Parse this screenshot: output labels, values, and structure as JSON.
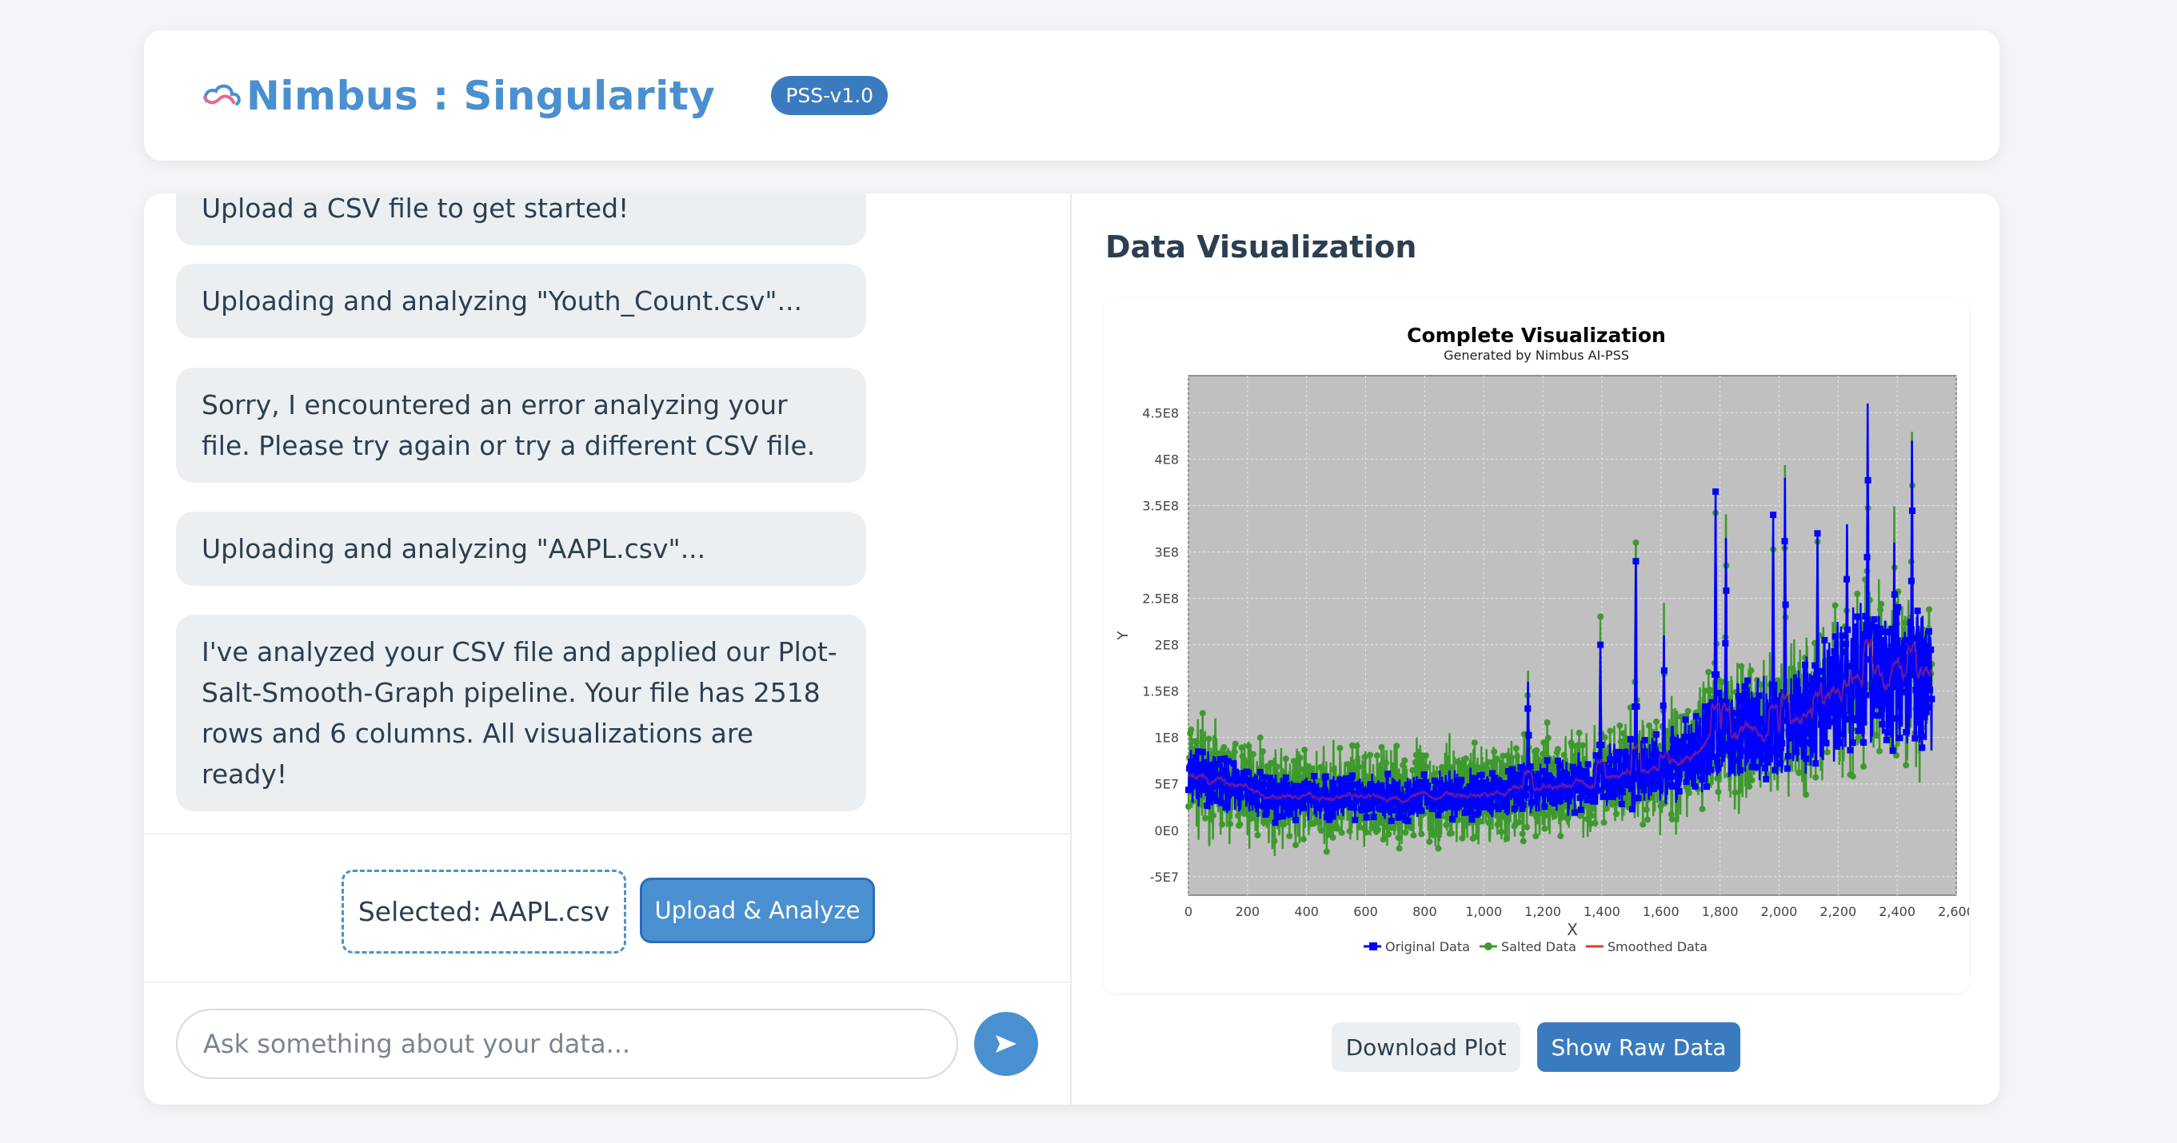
{
  "header": {
    "app_name": "Nimbus : Singularity",
    "version_badge": "PSS-v1.0",
    "brand_color": "#4a90d0"
  },
  "chat": {
    "messages": [
      {
        "text": "Upload a CSV file to get started!"
      },
      {
        "text": "Uploading and analyzing \"Youth_Count.csv\"..."
      },
      {
        "text": "Sorry, I encountered an error analyzing your file. Please try again or try a different CSV file."
      },
      {
        "text": "Uploading and analyzing \"AAPL.csv\"..."
      },
      {
        "text": "I've analyzed your CSV file and applied our Plot-Salt-Smooth-Graph pipeline. Your file has 2518 rows and 6 columns. All visualizations are ready!"
      }
    ],
    "selected_file": "Selected: AAPL.csv",
    "upload_button": "Upload & Analyze",
    "input_placeholder": "Ask something about your data...",
    "send_icon": "send-arrow-icon"
  },
  "visualization": {
    "panel_title": "Data Visualization",
    "download_button": "Download Plot",
    "raw_data_button": "Show Raw Data"
  },
  "chart_data": {
    "type": "line",
    "title": "Complete Visualization",
    "subtitle": "Generated by Nimbus AI-PSS",
    "xlabel": "X",
    "ylabel": "Y",
    "xlim": [
      0,
      2600
    ],
    "ylim": [
      -70000000,
      490000000
    ],
    "x_ticks": [
      0,
      200,
      400,
      600,
      800,
      1000,
      1200,
      1400,
      1600,
      1800,
      2000,
      2200,
      2400,
      2600
    ],
    "x_tick_labels": [
      "0",
      "200",
      "400",
      "600",
      "800",
      "1,000",
      "1,200",
      "1,400",
      "1,600",
      "1,800",
      "2,000",
      "2,200",
      "2,400",
      "2,600"
    ],
    "y_ticks": [
      -50000000,
      0,
      50000000,
      100000000,
      150000000,
      200000000,
      250000000,
      300000000,
      350000000,
      400000000,
      450000000
    ],
    "y_tick_labels": [
      "-5E7",
      "0E0",
      "5E7",
      "1E8",
      "1.5E8",
      "2E8",
      "2.5E8",
      "3E8",
      "3.5E8",
      "4E8",
      "4.5E8"
    ],
    "grid": true,
    "plot_background": "#c0c0c0",
    "legend_position": "bottom",
    "series": [
      {
        "name": "Original Data",
        "color": "#0000ff",
        "marker": "square"
      },
      {
        "name": "Salted Data",
        "color": "#3e9a2e",
        "marker": "circle"
      },
      {
        "name": "Smoothed Data",
        "color": "#e03a2a",
        "marker": "none"
      }
    ],
    "n_points": 2518,
    "trend_anchors": [
      {
        "x": 0,
        "y": 60000000
      },
      {
        "x": 300,
        "y": 35000000
      },
      {
        "x": 700,
        "y": 35000000
      },
      {
        "x": 1000,
        "y": 40000000
      },
      {
        "x": 1300,
        "y": 50000000
      },
      {
        "x": 1500,
        "y": 60000000
      },
      {
        "x": 1700,
        "y": 80000000
      },
      {
        "x": 1850,
        "y": 110000000
      },
      {
        "x": 2000,
        "y": 110000000
      },
      {
        "x": 2100,
        "y": 130000000
      },
      {
        "x": 2250,
        "y": 160000000
      },
      {
        "x": 2400,
        "y": 170000000
      },
      {
        "x": 2518,
        "y": 150000000
      }
    ],
    "peaks": [
      {
        "x": 1150,
        "y": 160000000
      },
      {
        "x": 1395,
        "y": 200000000
      },
      {
        "x": 1515,
        "y": 290000000
      },
      {
        "x": 1610,
        "y": 210000000
      },
      {
        "x": 1785,
        "y": 365000000
      },
      {
        "x": 1820,
        "y": 315000000
      },
      {
        "x": 1980,
        "y": 340000000
      },
      {
        "x": 2020,
        "y": 380000000
      },
      {
        "x": 2130,
        "y": 320000000
      },
      {
        "x": 2230,
        "y": 330000000
      },
      {
        "x": 2300,
        "y": 460000000
      },
      {
        "x": 2390,
        "y": 310000000
      },
      {
        "x": 2450,
        "y": 420000000
      }
    ]
  }
}
